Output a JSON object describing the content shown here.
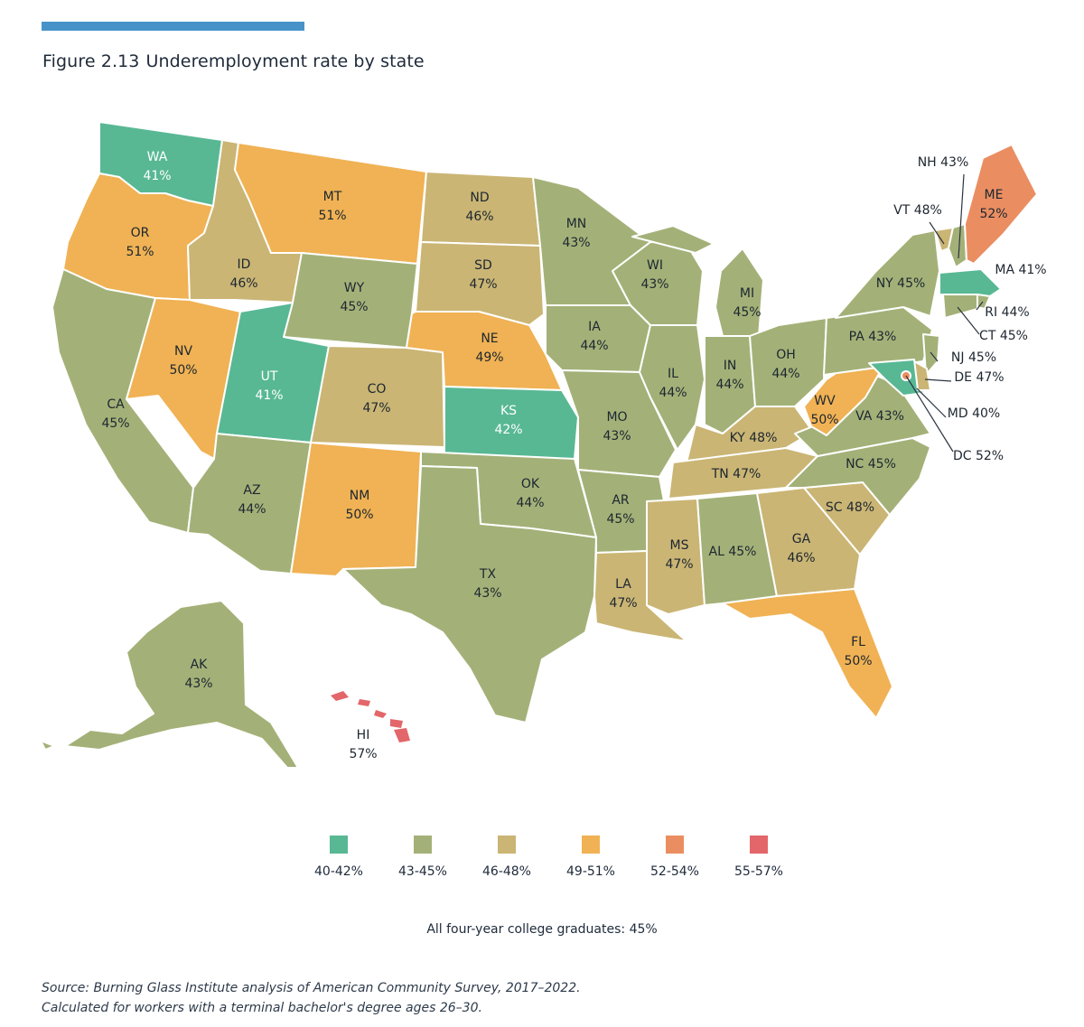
{
  "header": {
    "figure_number": "Figure 2.13",
    "title": "Underemployment rate by state"
  },
  "legend": [
    {
      "range": "40-42%",
      "color": "#58b894"
    },
    {
      "range": "43-45%",
      "color": "#a3b178"
    },
    {
      "range": "46-48%",
      "color": "#cab574"
    },
    {
      "range": "49-51%",
      "color": "#f0b254"
    },
    {
      "range": "52-54%",
      "color": "#ea8e62"
    },
    {
      "range": "55-57%",
      "color": "#e3666a"
    }
  ],
  "map_data": {
    "type": "choropleth",
    "states": [
      {
        "abbr": "WA",
        "value": "41%"
      },
      {
        "abbr": "OR",
        "value": "51%"
      },
      {
        "abbr": "CA",
        "value": "45%"
      },
      {
        "abbr": "ID",
        "value": "46%"
      },
      {
        "abbr": "NV",
        "value": "50%"
      },
      {
        "abbr": "MT",
        "value": "51%"
      },
      {
        "abbr": "WY",
        "value": "45%"
      },
      {
        "abbr": "UT",
        "value": "41%"
      },
      {
        "abbr": "AZ",
        "value": "44%"
      },
      {
        "abbr": "CO",
        "value": "47%"
      },
      {
        "abbr": "NM",
        "value": "50%"
      },
      {
        "abbr": "ND",
        "value": "46%"
      },
      {
        "abbr": "SD",
        "value": "47%"
      },
      {
        "abbr": "NE",
        "value": "49%"
      },
      {
        "abbr": "KS",
        "value": "42%"
      },
      {
        "abbr": "OK",
        "value": "44%"
      },
      {
        "abbr": "TX",
        "value": "43%"
      },
      {
        "abbr": "MN",
        "value": "43%"
      },
      {
        "abbr": "IA",
        "value": "44%"
      },
      {
        "abbr": "MO",
        "value": "43%"
      },
      {
        "abbr": "AR",
        "value": "45%"
      },
      {
        "abbr": "LA",
        "value": "47%"
      },
      {
        "abbr": "WI",
        "value": "43%"
      },
      {
        "abbr": "IL",
        "value": "44%"
      },
      {
        "abbr": "MI",
        "value": "45%"
      },
      {
        "abbr": "IN",
        "value": "44%"
      },
      {
        "abbr": "OH",
        "value": "44%"
      },
      {
        "abbr": "KY",
        "value": "48%"
      },
      {
        "abbr": "TN",
        "value": "47%"
      },
      {
        "abbr": "MS",
        "value": "47%"
      },
      {
        "abbr": "AL",
        "value": "45%"
      },
      {
        "abbr": "GA",
        "value": "46%"
      },
      {
        "abbr": "FL",
        "value": "50%"
      },
      {
        "abbr": "SC",
        "value": "48%"
      },
      {
        "abbr": "NC",
        "value": "45%"
      },
      {
        "abbr": "VA",
        "value": "43%"
      },
      {
        "abbr": "WV",
        "value": "50%"
      },
      {
        "abbr": "PA",
        "value": "43%"
      },
      {
        "abbr": "NY",
        "value": "45%"
      },
      {
        "abbr": "VT",
        "value": "48%"
      },
      {
        "abbr": "NH",
        "value": "43%"
      },
      {
        "abbr": "ME",
        "value": "52%"
      },
      {
        "abbr": "MA",
        "value": "41%"
      },
      {
        "abbr": "RI",
        "value": "44%"
      },
      {
        "abbr": "CT",
        "value": "45%"
      },
      {
        "abbr": "NJ",
        "value": "45%"
      },
      {
        "abbr": "DE",
        "value": "47%"
      },
      {
        "abbr": "MD",
        "value": "40%"
      },
      {
        "abbr": "DC",
        "value": "52%"
      },
      {
        "abbr": "AK",
        "value": "43%"
      },
      {
        "abbr": "HI",
        "value": "57%"
      }
    ]
  },
  "summary_note": "All four-year college graduates: 45%",
  "source": {
    "line1": "Source: Burning Glass Institute analysis of American Community Survey, 2017–2022.",
    "line2": "Calculated for workers with a terminal bachelor's degree ages 26–30."
  }
}
